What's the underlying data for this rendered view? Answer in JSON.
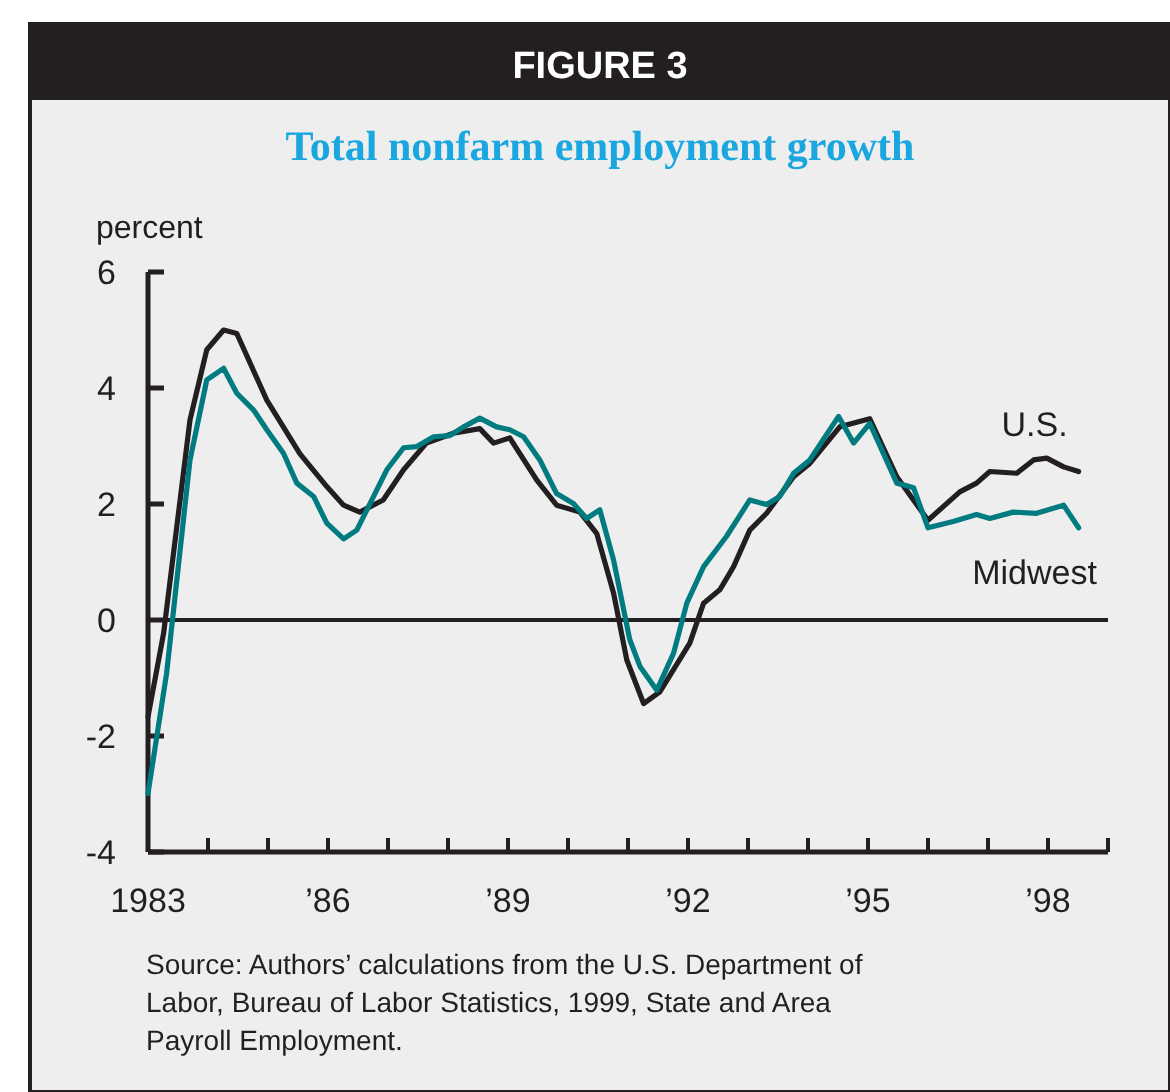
{
  "chart_data": {
    "type": "line",
    "title": "Total nonfarm employment growth",
    "subtitle": "FIGURE 3",
    "ylabel": "percent",
    "annotations": [
      "Source: Authors’ calculations from the U.S. Department of Labor, Bureau of Labor Statistics, 1999, State and Area Payroll Employment."
    ],
    "xlim": [
      1983,
      1999
    ],
    "xticks": [
      1983,
      {
        "value": 1984,
        "label": null
      },
      {
        "value": 1985,
        "label": null
      },
      {
        "value": 1986,
        "label": "’86"
      },
      {
        "value": 1987,
        "label": null
      },
      {
        "value": 1988,
        "label": null
      },
      {
        "value": 1989,
        "label": "’89"
      },
      {
        "value": 1990,
        "label": null
      },
      {
        "value": 1991,
        "label": null
      },
      {
        "value": 1992,
        "label": "’92"
      },
      {
        "value": 1993,
        "label": null
      },
      {
        "value": 1994,
        "label": null
      },
      {
        "value": 1995,
        "label": "’95"
      },
      {
        "value": 1996,
        "label": null
      },
      {
        "value": 1997,
        "label": null
      },
      {
        "value": 1998,
        "label": "’98"
      },
      {
        "value": 1999,
        "label": null
      }
    ],
    "ylim": [
      -4,
      6
    ],
    "yticks": [
      -4,
      -2,
      0,
      2,
      4,
      6
    ],
    "grid": false,
    "ref_lines": [
      {
        "axis": "y",
        "value": 0,
        "color": "#231f20"
      }
    ],
    "series": [
      {
        "name": "U.S.",
        "color": "#231f20",
        "x": [
          1983.0,
          1983.26,
          1983.7,
          1983.98,
          1984.26,
          1984.48,
          1984.98,
          1985.53,
          1985.98,
          1986.26,
          1986.53,
          1986.92,
          1987.26,
          1987.64,
          1988.09,
          1988.53,
          1988.76,
          1989.03,
          1989.48,
          1989.81,
          1990.2,
          1990.48,
          1990.76,
          1990.98,
          1991.26,
          1991.53,
          1992.03,
          1992.26,
          1992.53,
          1992.76,
          1993.03,
          1993.31,
          1993.76,
          1994.03,
          1994.53,
          1995.03,
          1995.48,
          1996.0,
          1996.53,
          1996.81,
          1997.03,
          1997.48,
          1997.76,
          1997.98,
          1998.26,
          1998.51
        ],
        "values": [
          -1.67,
          -0.23,
          3.45,
          4.66,
          5.0,
          4.94,
          3.79,
          2.87,
          2.3,
          1.98,
          1.86,
          2.07,
          2.59,
          3.05,
          3.22,
          3.3,
          3.05,
          3.14,
          2.41,
          1.98,
          1.86,
          1.49,
          0.46,
          -0.69,
          -1.44,
          -1.24,
          -0.4,
          0.29,
          0.52,
          0.92,
          1.55,
          1.84,
          2.47,
          2.7,
          3.33,
          3.47,
          2.47,
          1.72,
          2.21,
          2.36,
          2.56,
          2.53,
          2.76,
          2.79,
          2.64,
          2.56
        ]
      },
      {
        "name": "Midwest",
        "color": "#007b80",
        "x": [
          1983.0,
          1983.31,
          1983.7,
          1983.98,
          1984.26,
          1984.48,
          1984.76,
          1984.98,
          1985.26,
          1985.48,
          1985.76,
          1985.98,
          1986.26,
          1986.48,
          1986.76,
          1986.98,
          1987.26,
          1987.48,
          1987.76,
          1988.03,
          1988.26,
          1988.53,
          1988.81,
          1989.03,
          1989.26,
          1989.53,
          1989.81,
          1990.09,
          1990.31,
          1990.53,
          1990.76,
          1991.03,
          1991.2,
          1991.48,
          1991.76,
          1991.98,
          1992.26,
          1992.64,
          1993.03,
          1993.31,
          1993.53,
          1993.76,
          1994.03,
          1994.51,
          1994.76,
          1995.03,
          1995.48,
          1995.76,
          1996.0,
          1996.42,
          1996.81,
          1997.03,
          1997.42,
          1997.81,
          1998.26,
          1998.51
        ],
        "values": [
          -2.99,
          -0.92,
          2.76,
          4.14,
          4.34,
          3.91,
          3.62,
          3.28,
          2.87,
          2.36,
          2.13,
          1.67,
          1.4,
          1.55,
          2.13,
          2.59,
          2.97,
          2.99,
          3.16,
          3.18,
          3.33,
          3.48,
          3.33,
          3.28,
          3.16,
          2.76,
          2.18,
          2.01,
          1.75,
          1.9,
          1.03,
          -0.34,
          -0.8,
          -1.21,
          -0.57,
          0.29,
          0.92,
          1.44,
          2.07,
          1.99,
          2.13,
          2.53,
          2.76,
          3.51,
          3.05,
          3.39,
          2.36,
          2.28,
          1.59,
          1.7,
          1.82,
          1.75,
          1.86,
          1.84,
          1.98,
          1.59
        ]
      }
    ]
  }
}
